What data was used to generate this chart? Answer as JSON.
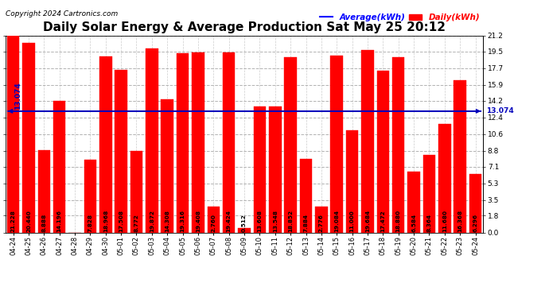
{
  "title": "Daily Solar Energy & Average Production Sat May 25 20:12",
  "copyright": "Copyright 2024 Cartronics.com",
  "average_label": "Average(kWh)",
  "daily_label": "Daily(kWh)",
  "average_value": 13.074,
  "average_annotation": "13.074",
  "categories": [
    "04-24",
    "04-25",
    "04-26",
    "04-27",
    "04-28",
    "04-29",
    "04-30",
    "05-01",
    "05-02",
    "05-03",
    "05-04",
    "05-05",
    "05-06",
    "05-07",
    "05-08",
    "05-09",
    "05-10",
    "05-11",
    "05-12",
    "05-13",
    "05-14",
    "05-15",
    "05-16",
    "05-17",
    "05-18",
    "05-19",
    "05-20",
    "05-21",
    "05-22",
    "05-23",
    "05-24"
  ],
  "values": [
    21.228,
    20.44,
    8.888,
    14.196,
    0.0,
    7.828,
    18.968,
    17.508,
    8.772,
    19.872,
    14.308,
    19.316,
    19.408,
    2.76,
    19.424,
    0.512,
    13.608,
    13.548,
    18.852,
    7.884,
    2.776,
    19.084,
    11.0,
    19.684,
    17.472,
    18.88,
    6.584,
    8.364,
    11.68,
    16.368,
    6.296
  ],
  "bar_color": "#ff0000",
  "avg_line_color": "#0000bb",
  "background_color": "#ffffff",
  "grid_color": "#aaaaaa",
  "title_color": "#000000",
  "value_label_color": "#000000",
  "copyright_color": "#000000",
  "avg_legend_color": "#0000ff",
  "daily_legend_color": "#ff0000",
  "ylim_min": 0.0,
  "ylim_max": 21.2,
  "yticks": [
    0.0,
    1.8,
    3.5,
    5.3,
    7.1,
    8.8,
    10.6,
    12.4,
    14.2,
    15.9,
    17.7,
    19.5,
    21.2
  ],
  "title_fontsize": 11,
  "copyright_fontsize": 6.5,
  "legend_fontsize": 7.5,
  "xtick_fontsize": 6,
  "ytick_fontsize": 6.5,
  "value_label_fontsize": 5.2,
  "avg_annot_fontsize": 6.5
}
